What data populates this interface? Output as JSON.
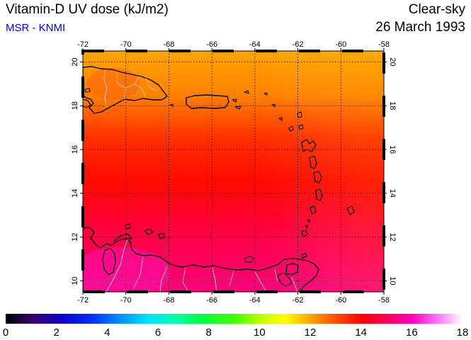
{
  "header": {
    "title": "Vitamin-D UV dose (kJ/m2)",
    "subtitle": "MSR - KNMI",
    "condition": "Clear-sky",
    "date": "26 March 1993"
  },
  "colors": {
    "subtitle": "#0000ff",
    "coast": "#000000",
    "borders": "#c8c8c8",
    "gridlines": "#000000"
  },
  "map": {
    "lon_range": [
      -72,
      -58
    ],
    "lat_range": [
      9.5,
      20.5
    ],
    "lon_ticks": [
      "-72",
      "-70",
      "-68",
      "-66",
      "-64",
      "-62",
      "-60",
      "-58"
    ],
    "lat_ticks": [
      "10",
      "12",
      "14",
      "16",
      "18",
      "20"
    ],
    "gridlines": true,
    "field_levels": [
      {
        "lat": 20.5,
        "value": 12.0
      },
      {
        "lat": 18.5,
        "value": 12.4
      },
      {
        "lat": 16.5,
        "value": 13.4
      },
      {
        "lat": 14.5,
        "value": 13.9
      },
      {
        "lat": 12.5,
        "value": 14.7
      },
      {
        "lat": 9.5,
        "value": 15.4
      }
    ]
  },
  "colorbar": {
    "range": [
      0,
      18
    ],
    "tick_labels": [
      "0",
      "2",
      "4",
      "6",
      "8",
      "10",
      "12",
      "14",
      "16",
      "18"
    ]
  }
}
